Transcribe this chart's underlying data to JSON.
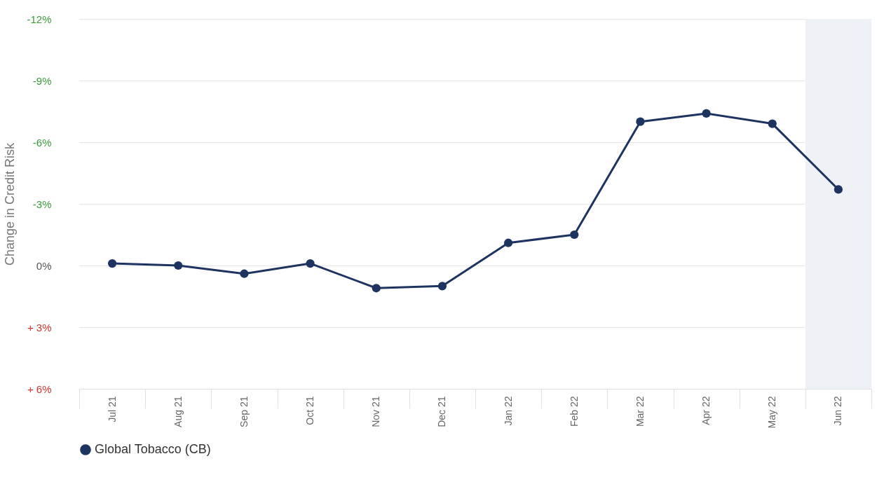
{
  "chart_data": {
    "type": "line",
    "ylabel": "Change in Credit Risk",
    "categories": [
      "Jul 21",
      "Aug 21",
      "Sep 21",
      "Oct 21",
      "Nov 21",
      "Dec 21",
      "Jan 22",
      "Feb 22",
      "Mar 22",
      "Apr 22",
      "May 22",
      "Jun 22"
    ],
    "series": [
      {
        "name": "Global Tobacco (CB)",
        "color": "#1d3461",
        "values": [
          -0.1,
          0.0,
          0.4,
          -0.1,
          1.1,
          1.0,
          -1.1,
          -1.5,
          -7.0,
          -7.4,
          -6.9,
          -3.7
        ]
      }
    ],
    "ylim": [
      6,
      -12
    ],
    "yticks": [
      {
        "value": -12,
        "label": "-12%"
      },
      {
        "value": -9,
        "label": "-9%"
      },
      {
        "value": -6,
        "label": "-6%"
      },
      {
        "value": -3,
        "label": "-3%"
      },
      {
        "value": 0,
        "label": "0%"
      },
      {
        "value": 3,
        "label": "+ 3%"
      },
      {
        "value": 6,
        "label": "+ 6%"
      }
    ],
    "bands": [
      {
        "axis": "x",
        "from": "Jun 22",
        "to": "Jun 22",
        "color": "#eef2f7"
      }
    ],
    "grid": "y",
    "legend": "bottom",
    "marker": "circle",
    "line_style": "solid"
  }
}
